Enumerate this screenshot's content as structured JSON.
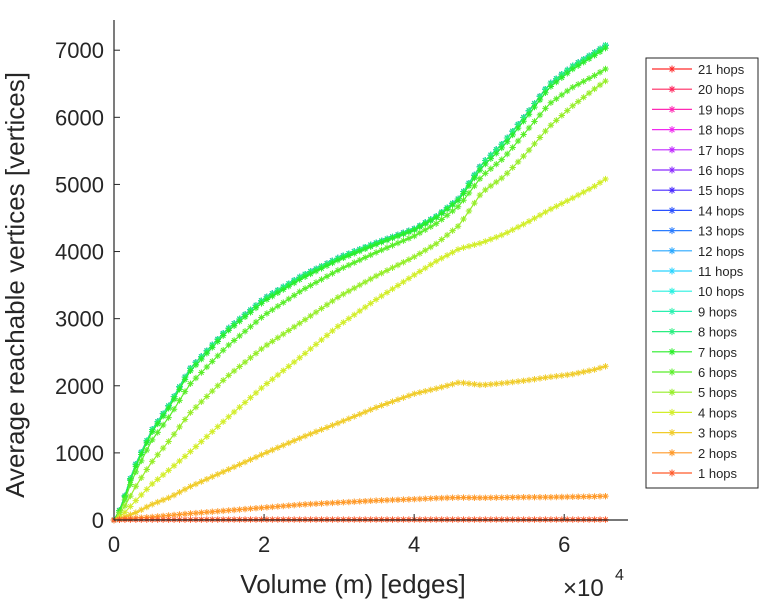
{
  "chart_data": {
    "type": "line",
    "title": "",
    "xlabel": "Volume (m) [edges]",
    "ylabel": "Average reachable vertices [vertices]",
    "x_multiplier_label": "×10",
    "x_multiplier_exp": "4",
    "xlim": [
      0,
      6.85
    ],
    "ylim": [
      0,
      7450
    ],
    "x_ticks": [
      0,
      2,
      4,
      6
    ],
    "x_tick_labels": [
      "0",
      "2",
      "4",
      "6"
    ],
    "y_ticks": [
      0,
      1000,
      2000,
      3000,
      4000,
      5000,
      6000,
      7000
    ],
    "y_tick_labels": [
      "0",
      "1000",
      "2000",
      "3000",
      "4000",
      "5000",
      "6000",
      "7000"
    ],
    "x_units": "edges (x 10^4)",
    "grid": false,
    "legend_position": "right",
    "x": [
      0,
      0.05,
      0.1,
      0.2,
      0.3,
      0.5,
      0.75,
      1.0,
      1.5,
      2.0,
      2.5,
      3.0,
      3.5,
      4.0,
      4.3,
      4.6,
      4.9,
      5.2,
      5.5,
      5.8,
      6.1,
      6.4,
      6.55
    ],
    "series": [
      {
        "name": "21 hops",
        "color": "#ff2a2a",
        "values": [
          0,
          104,
          188,
          563,
          856,
          1333,
          1739,
          2239,
          2833,
          3299,
          3637,
          3911,
          4133,
          4337,
          4527,
          4797,
          5302,
          5636,
          6055,
          6492,
          6756,
          6963,
          7074
        ]
      },
      {
        "name": "20 hops",
        "color": "#ff2a60",
        "values": [
          0,
          104,
          188,
          563,
          856,
          1333,
          1739,
          2239,
          2833,
          3299,
          3637,
          3911,
          4133,
          4337,
          4527,
          4797,
          5302,
          5636,
          6055,
          6492,
          6756,
          6963,
          7074
        ]
      },
      {
        "name": "19 hops",
        "color": "#ff2ab4",
        "values": [
          0,
          104,
          188,
          563,
          856,
          1333,
          1739,
          2239,
          2833,
          3299,
          3637,
          3911,
          4133,
          4337,
          4527,
          4797,
          5302,
          5636,
          6055,
          6492,
          6756,
          6963,
          7074
        ]
      },
      {
        "name": "18 hops",
        "color": "#f02af0",
        "values": [
          0,
          104,
          188,
          563,
          856,
          1333,
          1739,
          2239,
          2833,
          3299,
          3637,
          3911,
          4133,
          4337,
          4527,
          4797,
          5302,
          5636,
          6055,
          6492,
          6756,
          6963,
          7074
        ]
      },
      {
        "name": "17 hops",
        "color": "#c02aff",
        "values": [
          0,
          104,
          188,
          563,
          856,
          1333,
          1739,
          2239,
          2833,
          3299,
          3637,
          3911,
          4133,
          4337,
          4527,
          4797,
          5302,
          5636,
          6055,
          6492,
          6756,
          6963,
          7074
        ]
      },
      {
        "name": "16 hops",
        "color": "#8a2aff",
        "values": [
          0,
          104,
          188,
          563,
          856,
          1333,
          1739,
          2239,
          2833,
          3299,
          3637,
          3911,
          4133,
          4337,
          4527,
          4797,
          5302,
          5636,
          6055,
          6492,
          6756,
          6963,
          7074
        ]
      },
      {
        "name": "15 hops",
        "color": "#4a2aff",
        "values": [
          0,
          104,
          188,
          563,
          856,
          1333,
          1739,
          2239,
          2833,
          3299,
          3637,
          3911,
          4133,
          4337,
          4527,
          4797,
          5302,
          5636,
          6055,
          6492,
          6756,
          6963,
          7074
        ]
      },
      {
        "name": "14 hops",
        "color": "#2a50ff",
        "values": [
          0,
          104,
          188,
          563,
          856,
          1333,
          1739,
          2239,
          2833,
          3299,
          3637,
          3911,
          4133,
          4337,
          4527,
          4797,
          5302,
          5636,
          6055,
          6492,
          6756,
          6963,
          7074
        ]
      },
      {
        "name": "13 hops",
        "color": "#2a7cff",
        "values": [
          0,
          104,
          188,
          563,
          856,
          1333,
          1739,
          2239,
          2833,
          3299,
          3637,
          3911,
          4133,
          4337,
          4527,
          4797,
          5302,
          5636,
          6055,
          6492,
          6756,
          6963,
          7074
        ]
      },
      {
        "name": "12 hops",
        "color": "#2aa8ff",
        "values": [
          0,
          104,
          188,
          563,
          856,
          1333,
          1739,
          2239,
          2833,
          3299,
          3637,
          3911,
          4133,
          4337,
          4527,
          4797,
          5302,
          5636,
          6055,
          6492,
          6756,
          6963,
          7074
        ]
      },
      {
        "name": "11 hops",
        "color": "#2ad4ff",
        "values": [
          0,
          104,
          188,
          563,
          856,
          1333,
          1739,
          2239,
          2833,
          3299,
          3637,
          3911,
          4133,
          4337,
          4527,
          4797,
          5302,
          5636,
          6055,
          6492,
          6756,
          6963,
          7074
        ]
      },
      {
        "name": "10 hops",
        "color": "#2af0e0",
        "values": [
          0,
          104,
          188,
          563,
          856,
          1333,
          1739,
          2239,
          2833,
          3299,
          3637,
          3911,
          4133,
          4337,
          4527,
          4797,
          5302,
          5636,
          6055,
          6492,
          6756,
          6963,
          7074
        ]
      },
      {
        "name": "9 hops",
        "color": "#2af0b0",
        "values": [
          0,
          104,
          188,
          563,
          856,
          1333,
          1739,
          2239,
          2833,
          3299,
          3637,
          3911,
          4133,
          4337,
          4527,
          4797,
          5302,
          5636,
          6055,
          6492,
          6756,
          6963,
          7074
        ]
      },
      {
        "name": "8 hops",
        "color": "#2aee80",
        "values": [
          0,
          104,
          188,
          563,
          856,
          1333,
          1739,
          2239,
          2833,
          3299,
          3637,
          3911,
          4133,
          4337,
          4527,
          4797,
          5302,
          5636,
          6055,
          6492,
          6756,
          6963,
          7074
        ]
      },
      {
        "name": "7 hops",
        "color": "#2aee2a",
        "values": [
          0,
          100,
          180,
          540,
          825,
          1300,
          1700,
          2200,
          2800,
          3260,
          3600,
          3880,
          4110,
          4320,
          4510,
          4770,
          5250,
          5580,
          6000,
          6440,
          6710,
          6920,
          7030
        ]
      },
      {
        "name": "6 hops",
        "color": "#5aee2a",
        "values": [
          0,
          80,
          150,
          480,
          740,
          1180,
          1560,
          2010,
          2580,
          3050,
          3420,
          3730,
          3990,
          4230,
          4420,
          4680,
          5120,
          5400,
          5800,
          6200,
          6440,
          6620,
          6720
        ]
      },
      {
        "name": "5 hops",
        "color": "#96ee2a",
        "values": [
          0,
          60,
          120,
          320,
          520,
          860,
          1200,
          1580,
          2130,
          2580,
          2950,
          3330,
          3640,
          3920,
          4120,
          4390,
          4880,
          5120,
          5470,
          5860,
          6160,
          6420,
          6540
        ]
      },
      {
        "name": "4 hops",
        "color": "#d2ee2a",
        "values": [
          0,
          30,
          60,
          180,
          300,
          530,
          760,
          1000,
          1510,
          2000,
          2440,
          2900,
          3290,
          3650,
          3860,
          4040,
          4130,
          4260,
          4430,
          4620,
          4790,
          4970,
          5080
        ]
      },
      {
        "name": "3 hops",
        "color": "#f0cc2a",
        "values": [
          0,
          10,
          30,
          70,
          115,
          230,
          340,
          490,
          740,
          990,
          1230,
          1450,
          1680,
          1880,
          1960,
          2050,
          2010,
          2040,
          2080,
          2130,
          2170,
          2240,
          2290
        ]
      },
      {
        "name": "2 hops",
        "color": "#ff9a2a",
        "values": [
          0,
          5,
          10,
          20,
          30,
          45,
          70,
          95,
          140,
          185,
          230,
          260,
          290,
          310,
          325,
          335,
          330,
          335,
          340,
          340,
          345,
          350,
          355
        ]
      },
      {
        "name": "1 hops",
        "color": "#ff5a2a",
        "values": [
          0,
          2,
          4,
          5,
          5,
          5,
          5,
          5,
          6,
          6,
          6,
          6,
          6,
          6,
          6,
          6,
          6,
          6,
          6,
          6,
          6,
          6,
          6
        ]
      }
    ]
  }
}
